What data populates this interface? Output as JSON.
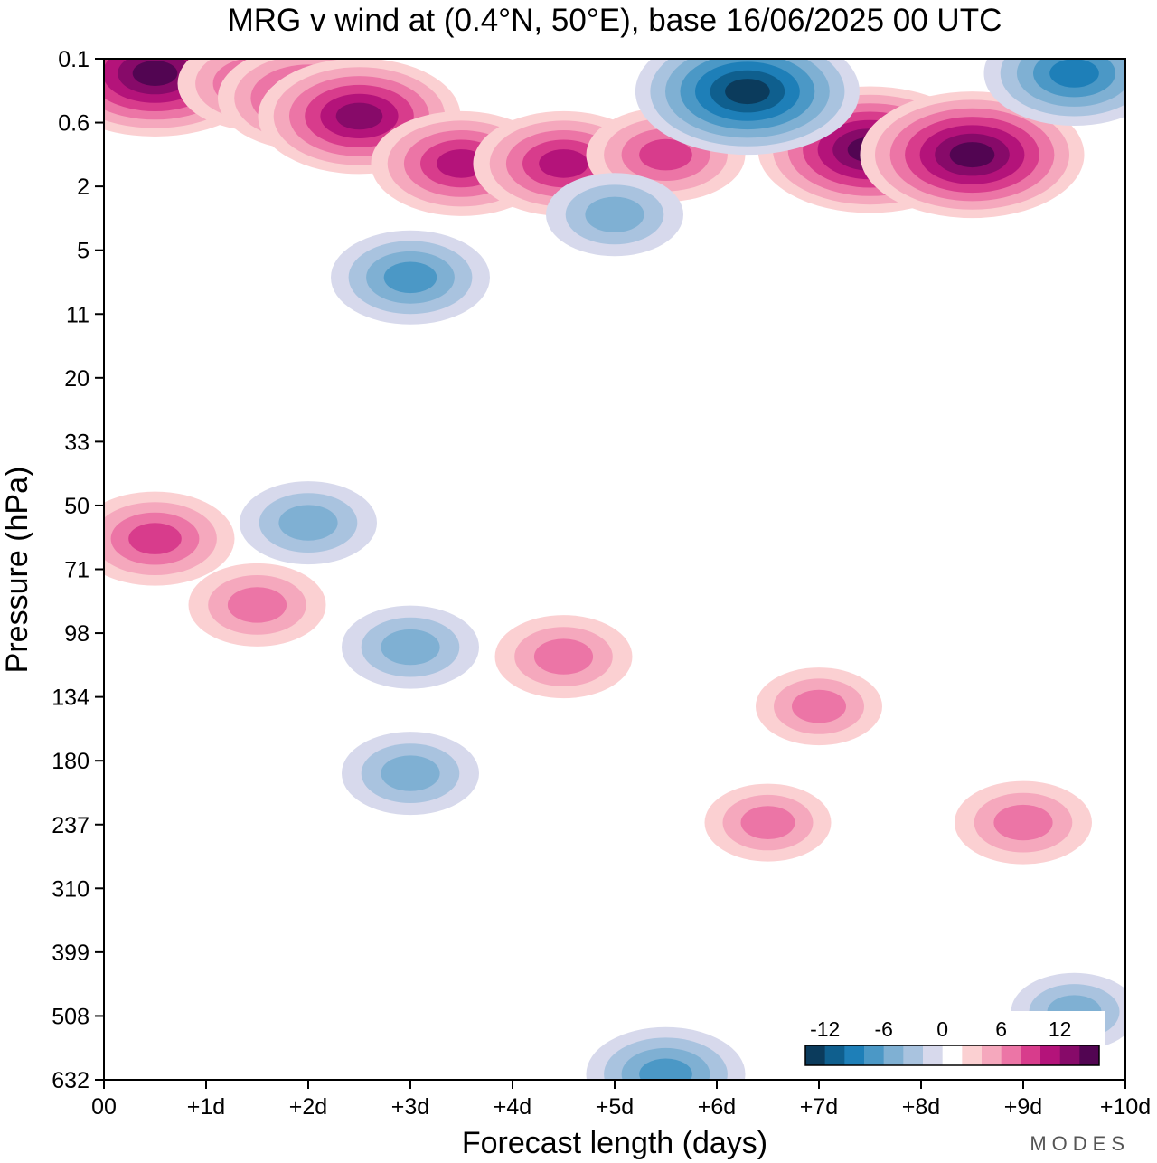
{
  "chart_data": {
    "type": "heatmap",
    "title": "MRG v wind at (0.4°N, 50°E),  base 16/06/2025  00 UTC",
    "xlabel": "Forecast length (days)",
    "ylabel": "Pressure (hPa)",
    "x_ticks": [
      "00",
      "+1d",
      "+2d",
      "+3d",
      "+4d",
      "+5d",
      "+6d",
      "+7d",
      "+8d",
      "+9d",
      "+10d"
    ],
    "y_ticks": [
      "0.1",
      "0.6",
      "2",
      "5",
      "11",
      "20",
      "33",
      "50",
      "71",
      "98",
      "134",
      "180",
      "237",
      "310",
      "399",
      "508",
      "632"
    ],
    "xlim": [
      0,
      10
    ],
    "y_scale": "log (pressure, inverted)",
    "colorbar": {
      "tick_labels": [
        "-12",
        "-6",
        "0",
        "6",
        "12"
      ],
      "levels": [
        -14,
        -12,
        -10,
        -8,
        -6,
        -4,
        -2,
        0,
        2,
        4,
        6,
        8,
        10,
        12,
        14
      ],
      "colors": [
        "#0b3b5c",
        "#0f5f8e",
        "#1e7fb8",
        "#4b98c6",
        "#7fb0d3",
        "#a9c3df",
        "#d7d9ec",
        "#ffffff",
        "#fbd0d2",
        "#f5a8bd",
        "#ec75a6",
        "#d83c8c",
        "#b4137a",
        "#870a69",
        "#520552"
      ]
    },
    "features": [
      {
        "x": 0.5,
        "p": 0.15,
        "v": 14
      },
      {
        "x": 1.5,
        "p": 0.2,
        "v": 8
      },
      {
        "x": 2.0,
        "p": 0.3,
        "v": 10
      },
      {
        "x": 2.5,
        "p": 0.5,
        "v": 12
      },
      {
        "x": 3.5,
        "p": 1.3,
        "v": 10
      },
      {
        "x": 4.5,
        "p": 1.3,
        "v": 10
      },
      {
        "x": 5.5,
        "p": 1.1,
        "v": 8
      },
      {
        "x": 7.5,
        "p": 1.0,
        "v": 14
      },
      {
        "x": 8.5,
        "p": 1.1,
        "v": 14
      },
      {
        "x": 6.3,
        "p": 0.25,
        "v": -14
      },
      {
        "x": 9.5,
        "p": 0.15,
        "v": -10
      },
      {
        "x": 3.0,
        "p": 7,
        "v": -8
      },
      {
        "x": 5.0,
        "p": 3,
        "v": -6
      },
      {
        "x": 0.5,
        "p": 60,
        "v": 8
      },
      {
        "x": 1.5,
        "p": 85,
        "v": 6
      },
      {
        "x": 3.0,
        "p": 105,
        "v": -6
      },
      {
        "x": 4.5,
        "p": 110,
        "v": 6
      },
      {
        "x": 7.0,
        "p": 140,
        "v": 5
      },
      {
        "x": 2.0,
        "p": 55,
        "v": -6
      },
      {
        "x": 3.0,
        "p": 190,
        "v": -6
      },
      {
        "x": 5.5,
        "p": 620,
        "v": -8
      },
      {
        "x": 9.5,
        "p": 500,
        "v": -5
      },
      {
        "x": 9.0,
        "p": 235,
        "v": 6
      },
      {
        "x": 6.5,
        "p": 235,
        "v": 5
      }
    ]
  },
  "branding": {
    "watermark": "MODES"
  }
}
